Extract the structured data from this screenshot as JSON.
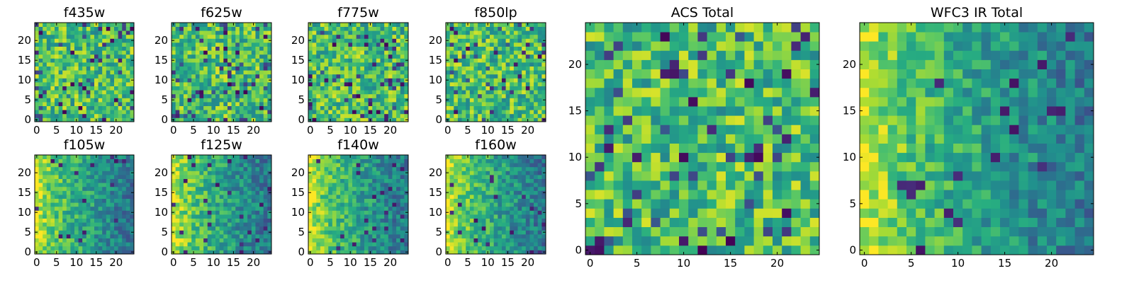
{
  "figure": {
    "description_colormap": "viridis",
    "colors": {
      "background": "#ffffff",
      "axis": "#000000"
    }
  },
  "chart_data": [
    {
      "type": "heatmap",
      "title": "f435w",
      "grid_size": 25,
      "colormap": "viridis",
      "xticks": [
        "0",
        "5",
        "10",
        "15",
        "20"
      ],
      "yticks": [
        "0",
        "5",
        "10",
        "15",
        "20"
      ],
      "xlim": [
        -0.5,
        24.5
      ],
      "ylim": [
        -0.5,
        24.5
      ],
      "pattern": "noise",
      "seed": 11
    },
    {
      "type": "heatmap",
      "title": "f625w",
      "grid_size": 25,
      "colormap": "viridis",
      "xticks": [
        "0",
        "5",
        "10",
        "15",
        "20"
      ],
      "yticks": [
        "0",
        "5",
        "10",
        "15",
        "20"
      ],
      "xlim": [
        -0.5,
        24.5
      ],
      "ylim": [
        -0.5,
        24.5
      ],
      "pattern": "noise",
      "seed": 23
    },
    {
      "type": "heatmap",
      "title": "f775w",
      "grid_size": 25,
      "colormap": "viridis",
      "xticks": [
        "0",
        "5",
        "10",
        "15",
        "20"
      ],
      "yticks": [
        "0",
        "5",
        "10",
        "15",
        "20"
      ],
      "xlim": [
        -0.5,
        24.5
      ],
      "ylim": [
        -0.5,
        24.5
      ],
      "pattern": "noise",
      "seed": 37
    },
    {
      "type": "heatmap",
      "title": "f850lp",
      "grid_size": 25,
      "colormap": "viridis",
      "xticks": [
        "0",
        "5",
        "10",
        "15",
        "20"
      ],
      "yticks": [
        "0",
        "5",
        "10",
        "15",
        "20"
      ],
      "xlim": [
        -0.5,
        24.5
      ],
      "ylim": [
        -0.5,
        24.5
      ],
      "pattern": "noise",
      "seed": 41
    },
    {
      "type": "heatmap",
      "title": "f105w",
      "grid_size": 25,
      "colormap": "viridis",
      "xticks": [
        "0",
        "5",
        "10",
        "15",
        "20"
      ],
      "yticks": [
        "0",
        "5",
        "10",
        "15",
        "20"
      ],
      "xlim": [
        -0.5,
        24.5
      ],
      "ylim": [
        -0.5,
        24.5
      ],
      "pattern": "gradient",
      "seed": 53
    },
    {
      "type": "heatmap",
      "title": "f125w",
      "grid_size": 25,
      "colormap": "viridis",
      "xticks": [
        "0",
        "5",
        "10",
        "15",
        "20"
      ],
      "yticks": [
        "0",
        "5",
        "10",
        "15",
        "20"
      ],
      "xlim": [
        -0.5,
        24.5
      ],
      "ylim": [
        -0.5,
        24.5
      ],
      "pattern": "gradient",
      "seed": 67
    },
    {
      "type": "heatmap",
      "title": "f140w",
      "grid_size": 25,
      "colormap": "viridis",
      "xticks": [
        "0",
        "5",
        "10",
        "15",
        "20"
      ],
      "yticks": [
        "0",
        "5",
        "10",
        "15",
        "20"
      ],
      "xlim": [
        -0.5,
        24.5
      ],
      "ylim": [
        -0.5,
        24.5
      ],
      "pattern": "gradient",
      "seed": 71
    },
    {
      "type": "heatmap",
      "title": "f160w",
      "grid_size": 25,
      "colormap": "viridis",
      "xticks": [
        "0",
        "5",
        "10",
        "15",
        "20"
      ],
      "yticks": [
        "0",
        "5",
        "10",
        "15",
        "20"
      ],
      "xlim": [
        -0.5,
        24.5
      ],
      "ylim": [
        -0.5,
        24.5
      ],
      "pattern": "gradient",
      "seed": 83
    },
    {
      "type": "heatmap",
      "title": "ACS Total",
      "grid_size": 25,
      "colormap": "viridis",
      "xticks": [
        "0",
        "5",
        "10",
        "15",
        "20"
      ],
      "yticks": [
        "0",
        "5",
        "10",
        "15",
        "20"
      ],
      "xlim": [
        -0.5,
        24.5
      ],
      "ylim": [
        -0.5,
        24.5
      ],
      "pattern": "noise",
      "seed": 97
    },
    {
      "type": "heatmap",
      "title": "WFC3 IR Total",
      "grid_size": 25,
      "colormap": "viridis",
      "xticks": [
        "0",
        "5",
        "10",
        "15",
        "20"
      ],
      "yticks": [
        "0",
        "5",
        "10",
        "15",
        "20"
      ],
      "xlim": [
        -0.5,
        24.5
      ],
      "ylim": [
        -0.5,
        24.5
      ],
      "pattern": "gradient",
      "seed": 101
    }
  ]
}
